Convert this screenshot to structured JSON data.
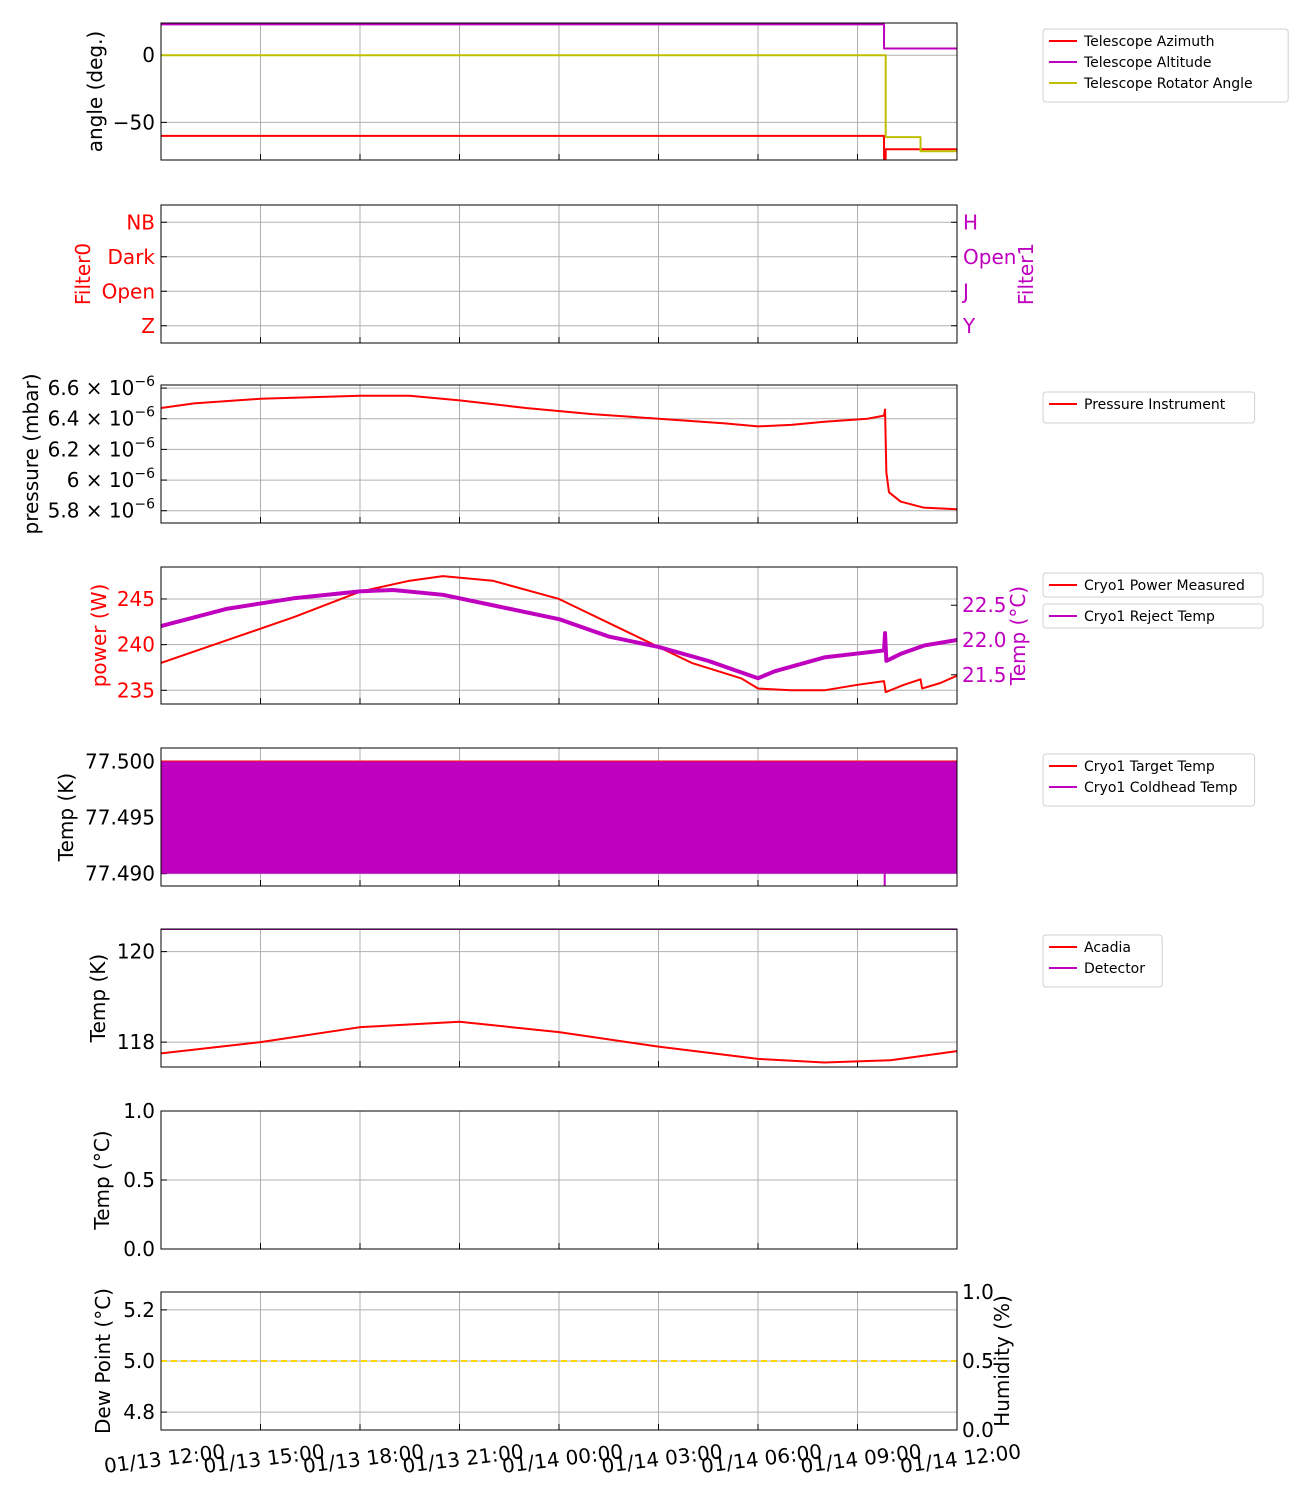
{
  "colors": {
    "red": "#ff0000",
    "magenta": "#bf00bf",
    "olive": "#bfbf00",
    "gold": "#ffd700",
    "grid": "#b0b0b0"
  },
  "time_labels": [
    "01/13 12:00",
    "01/13 15:00",
    "01/13 18:00",
    "01/13 21:00",
    "01/14 00:00",
    "01/14 03:00",
    "01/14 06:00",
    "01/14 09:00",
    "01/14 12:00"
  ],
  "chart_data": [
    {
      "id": "telescope",
      "type": "line",
      "ylabel": "angle (deg.)",
      "ylim": [
        -78,
        24
      ],
      "yticks": [
        0,
        -50
      ],
      "ytick_labels": [
        "0",
        "−50"
      ],
      "legend": [
        "Telescope Azimuth",
        "Telescope Altitude",
        "Telescope Rotator Angle"
      ],
      "series": [
        {
          "name": "Telescope Azimuth",
          "color": "red",
          "points": [
            [
              0,
              -60
            ],
            [
              21.8,
              -60
            ],
            [
              21.8,
              -77
            ],
            [
              21.85,
              -77
            ],
            [
              21.85,
              -70
            ],
            [
              24,
              -70
            ]
          ]
        },
        {
          "name": "Telescope Altitude",
          "color": "magenta",
          "points": [
            [
              0,
              23
            ],
            [
              21.8,
              23
            ],
            [
              21.8,
              5
            ],
            [
              24,
              5
            ]
          ]
        },
        {
          "name": "Telescope Rotator Angle",
          "color": "olive",
          "points": [
            [
              0,
              0
            ],
            [
              21.85,
              0
            ],
            [
              21.85,
              -61
            ],
            [
              22.9,
              -61
            ],
            [
              22.9,
              -71.5
            ],
            [
              24,
              -71.5
            ]
          ]
        }
      ]
    },
    {
      "id": "filters",
      "type": "line",
      "ylabel": "Filter0",
      "ylabel_right": "Filter1",
      "ylim": [
        -0.5,
        3.5
      ],
      "ytick_labels": [
        "Z",
        "Open",
        "Dark",
        "NB"
      ],
      "ytick_labels_right": [
        "Y",
        "J",
        "Open",
        "H"
      ],
      "series": []
    },
    {
      "id": "pressure",
      "type": "line",
      "ylabel": "pressure (mbar)",
      "ylim": [
        5.72e-06,
        6.62e-06
      ],
      "yticks": [
        6.6e-06,
        6.4e-06,
        6.2e-06,
        6e-06,
        5.8e-06
      ],
      "ytick_mantissas": [
        "6.6",
        "6.4",
        "6.2",
        "6",
        "5.8"
      ],
      "ytick_base": "10",
      "ytick_exponent": "−6",
      "legend": [
        "Pressure Instrument"
      ],
      "series": [
        {
          "name": "Pressure Instrument",
          "color": "red",
          "points": [
            [
              0,
              6.47e-06
            ],
            [
              1,
              6.5e-06
            ],
            [
              3,
              6.53e-06
            ],
            [
              6,
              6.55e-06
            ],
            [
              7.5,
              6.55e-06
            ],
            [
              9,
              6.52e-06
            ],
            [
              11,
              6.47e-06
            ],
            [
              13,
              6.43e-06
            ],
            [
              15,
              6.4e-06
            ],
            [
              17,
              6.37e-06
            ],
            [
              18,
              6.35e-06
            ],
            [
              19,
              6.36e-06
            ],
            [
              20,
              6.38e-06
            ],
            [
              21.3,
              6.4e-06
            ],
            [
              21.8,
              6.42e-06
            ],
            [
              21.83,
              6.46e-06
            ],
            [
              21.87,
              6.05e-06
            ],
            [
              21.95,
              5.92e-06
            ],
            [
              22.3,
              5.86e-06
            ],
            [
              23,
              5.82e-06
            ],
            [
              24,
              5.81e-06
            ]
          ]
        }
      ]
    },
    {
      "id": "cryo-power",
      "type": "line",
      "ylabel": "power (W)",
      "ylabel_right": "Temp (°C)",
      "ylim": [
        233.5,
        248.5
      ],
      "yticks": [
        245,
        240,
        235
      ],
      "ylim_right": [
        21.08,
        23.05
      ],
      "yticks_right": [
        22.5,
        22.0,
        21.5
      ],
      "ytick_labels_right": [
        "22.5",
        "22.0",
        "21.5"
      ],
      "legend": [
        "Cryo1 Power Measured",
        "Cryo1 Reject Temp"
      ],
      "series": [
        {
          "name": "Cryo1 Power Measured",
          "color": "red",
          "axis": "left",
          "points": [
            [
              0,
              238
            ],
            [
              2,
              240.5
            ],
            [
              4,
              243
            ],
            [
              6,
              245.8
            ],
            [
              7.5,
              247
            ],
            [
              8.5,
              247.5
            ],
            [
              10,
              247
            ],
            [
              12,
              245
            ],
            [
              14,
              241.5
            ],
            [
              16,
              238
            ],
            [
              17.5,
              236.3
            ],
            [
              18,
              235.2
            ],
            [
              19,
              235
            ],
            [
              20,
              235
            ],
            [
              21,
              235.6
            ],
            [
              21.8,
              236
            ],
            [
              21.85,
              234.8
            ],
            [
              22.4,
              235.6
            ],
            [
              22.9,
              236.2
            ],
            [
              22.95,
              235.2
            ],
            [
              23.5,
              235.8
            ],
            [
              24,
              236.6
            ]
          ]
        },
        {
          "name": "Cryo1 Reject Temp",
          "color": "magenta",
          "axis": "right",
          "points": [
            [
              0,
              22.2
            ],
            [
              2,
              22.45
            ],
            [
              4,
              22.6
            ],
            [
              6,
              22.7
            ],
            [
              7,
              22.72
            ],
            [
              8.5,
              22.65
            ],
            [
              10,
              22.5
            ],
            [
              12,
              22.3
            ],
            [
              13.5,
              22.05
            ],
            [
              15,
              21.9
            ],
            [
              16.5,
              21.7
            ],
            [
              18,
              21.45
            ],
            [
              18.5,
              21.55
            ],
            [
              20,
              21.75
            ],
            [
              21.8,
              21.85
            ],
            [
              21.83,
              22.1
            ],
            [
              21.87,
              21.7
            ],
            [
              22.3,
              21.8
            ],
            [
              23,
              21.92
            ],
            [
              24,
              22.0
            ]
          ]
        }
      ]
    },
    {
      "id": "cryo-temp",
      "type": "line",
      "ylabel": "Temp (K)",
      "ylim": [
        77.4889,
        77.5012
      ],
      "yticks": [
        77.5,
        77.495,
        77.49
      ],
      "ytick_labels": [
        "77.500",
        "77.495",
        "77.490"
      ],
      "legend": [
        "Cryo1 Target Temp",
        "Cryo1 Coldhead Temp"
      ],
      "series": [
        {
          "name": "Cryo1 Target Temp",
          "color": "red",
          "points": [
            [
              0,
              77.5
            ],
            [
              24,
              77.5
            ]
          ]
        },
        {
          "name": "Cryo1 Coldhead Temp",
          "color": "magenta",
          "band": [
            77.49,
            77.5
          ],
          "points": [
            [
              0,
              77.49
            ],
            [
              24,
              77.5
            ]
          ]
        }
      ]
    },
    {
      "id": "detector",
      "type": "line",
      "ylabel": "Temp (K)",
      "ylim": [
        117.45,
        120.5
      ],
      "yticks": [
        120,
        118
      ],
      "legend": [
        "Acadia",
        "Detector"
      ],
      "series": [
        {
          "name": "Acadia",
          "color": "red",
          "points": [
            [
              0,
              117.75
            ],
            [
              3,
              118.0
            ],
            [
              6,
              118.33
            ],
            [
              9,
              118.45
            ],
            [
              12,
              118.22
            ],
            [
              15,
              117.9
            ],
            [
              18,
              117.63
            ],
            [
              20,
              117.55
            ],
            [
              22,
              117.6
            ],
            [
              24,
              117.8
            ]
          ]
        },
        {
          "name": "Detector",
          "color": "magenta",
          "points": [
            [
              0,
              120.5
            ],
            [
              24,
              120.5
            ]
          ]
        }
      ]
    },
    {
      "id": "ambient",
      "type": "line",
      "ylabel": "Temp (°C)",
      "ylim": [
        0,
        1
      ],
      "yticks": [
        1.0,
        0.5,
        0.0
      ],
      "ytick_labels": [
        "1.0",
        "0.5",
        "0.0"
      ],
      "series": []
    },
    {
      "id": "weather",
      "type": "line",
      "ylabel": "Dew Point (°C)",
      "ylabel_right": "Humidity (%)",
      "ylim": [
        4.73,
        5.27
      ],
      "yticks": [
        5.2,
        5.0,
        4.8
      ],
      "ytick_labels": [
        "5.2",
        "5.0",
        "4.8"
      ],
      "ylim_right": [
        0,
        1
      ],
      "yticks_right": [
        1.0,
        0.5,
        0.0
      ],
      "ytick_labels_right": [
        "1.0",
        "0.5",
        "0.0"
      ],
      "series": [
        {
          "name": "Dew Point",
          "color": "gold",
          "dashed": true,
          "points": [
            [
              0,
              5.0
            ],
            [
              24,
              5.0
            ]
          ]
        }
      ]
    }
  ]
}
